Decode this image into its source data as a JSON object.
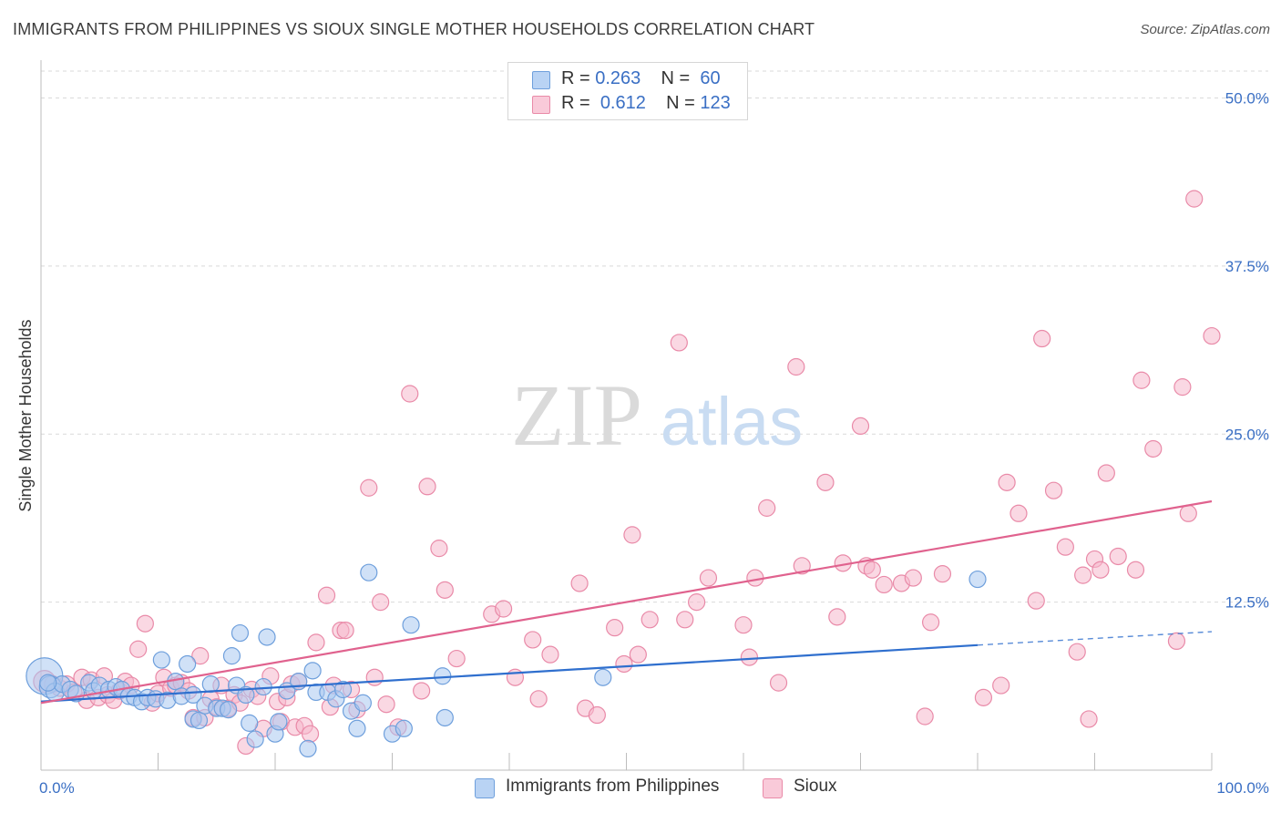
{
  "title": "IMMIGRANTS FROM PHILIPPINES VS SIOUX SINGLE MOTHER HOUSEHOLDS CORRELATION CHART",
  "source": "Source: ZipAtlas.com",
  "watermark": {
    "zip": "ZIP",
    "atlas": "atlas"
  },
  "legend": {
    "rows": [
      {
        "r_label": "R =",
        "r_value": "0.263",
        "n_label": "N =",
        "n_value": "60"
      },
      {
        "r_label": "R =",
        "r_value": "0.612",
        "n_label": "N =",
        "n_value": "123"
      }
    ]
  },
  "colors": {
    "blue_fill": "#a9c8f0",
    "blue_stroke": "#6e9fdc",
    "blue_line": "#2f6fce",
    "pink_fill": "#f6b8cc",
    "pink_stroke": "#e98aa8",
    "pink_line": "#e0628e",
    "tick_label": "#3a6fc4",
    "grid": "#d9d9d9"
  },
  "chart_data": {
    "type": "scatter",
    "title": "IMMIGRANTS FROM PHILIPPINES VS SIOUX SINGLE MOTHER HOUSEHOLDS CORRELATION CHART",
    "xlabel": "",
    "ylabel": "Single Mother Households",
    "xlim": [
      0,
      100
    ],
    "ylim": [
      0,
      52
    ],
    "x_tick_labels": [
      "0.0%",
      "100.0%"
    ],
    "y_ticks": [
      12.5,
      25.0,
      37.5,
      50.0
    ],
    "y_tick_labels": [
      "12.5%",
      "25.0%",
      "37.5%",
      "50.0%"
    ],
    "grid": true,
    "legend_position": "top-center",
    "series": [
      {
        "name": "Immigrants from Philippines",
        "color": "#a9c8f0",
        "trend": {
          "x": [
            0,
            80,
            100
          ],
          "y": [
            5.1,
            9.3,
            10.3
          ],
          "dashed_from": 80
        },
        "points": [
          [
            0.3,
            7.0,
            20
          ],
          [
            0.8,
            6.2,
            12
          ],
          [
            1.2,
            5.8,
            10
          ],
          [
            1.8,
            6.4,
            9
          ],
          [
            2.5,
            6.0,
            9
          ],
          [
            3.0,
            5.7,
            9
          ],
          [
            4.1,
            6.5,
            9
          ],
          [
            4.5,
            5.9,
            9
          ],
          [
            5.0,
            6.3,
            9
          ],
          [
            5.8,
            6.0,
            9
          ],
          [
            6.4,
            6.2,
            9
          ],
          [
            6.9,
            6.0,
            9
          ],
          [
            7.5,
            5.5,
            9
          ],
          [
            8.0,
            5.4,
            9
          ],
          [
            8.6,
            5.1,
            9
          ],
          [
            9.1,
            5.4,
            9
          ],
          [
            9.8,
            5.3,
            9
          ],
          [
            10.3,
            8.2,
            9
          ],
          [
            10.8,
            5.2,
            9
          ],
          [
            11.5,
            6.6,
            9
          ],
          [
            12.0,
            5.5,
            9
          ],
          [
            12.5,
            7.9,
            9
          ],
          [
            13.0,
            3.8,
            9
          ],
          [
            13.5,
            3.7,
            9
          ],
          [
            13.0,
            5.6,
            9
          ],
          [
            14.0,
            4.8,
            9
          ],
          [
            14.5,
            6.4,
            9
          ],
          [
            15.0,
            4.6,
            9
          ],
          [
            15.5,
            4.6,
            9
          ],
          [
            16.0,
            4.5,
            9
          ],
          [
            16.3,
            8.5,
            9
          ],
          [
            16.7,
            6.3,
            9
          ],
          [
            17.0,
            10.2,
            9
          ],
          [
            17.5,
            5.6,
            9
          ],
          [
            17.8,
            3.5,
            9
          ],
          [
            18.3,
            2.3,
            9
          ],
          [
            19.0,
            6.2,
            9
          ],
          [
            19.3,
            9.9,
            9
          ],
          [
            20.0,
            2.7,
            9
          ],
          [
            20.3,
            3.6,
            9
          ],
          [
            21.0,
            5.9,
            9
          ],
          [
            22.0,
            6.6,
            9
          ],
          [
            22.8,
            1.6,
            9
          ],
          [
            23.2,
            7.4,
            9
          ],
          [
            23.5,
            5.8,
            9
          ],
          [
            24.5,
            5.8,
            9
          ],
          [
            25.2,
            5.3,
            9
          ],
          [
            25.8,
            6.0,
            9
          ],
          [
            26.5,
            4.4,
            9
          ],
          [
            27.0,
            3.1,
            9
          ],
          [
            27.5,
            5.0,
            9
          ],
          [
            28.0,
            14.7,
            9
          ],
          [
            30.0,
            2.7,
            9
          ],
          [
            31.0,
            3.1,
            9
          ],
          [
            31.6,
            10.8,
            9
          ],
          [
            34.3,
            7.0,
            9
          ],
          [
            34.5,
            3.9,
            9
          ],
          [
            48.0,
            6.9,
            9
          ],
          [
            80.0,
            14.2,
            9
          ],
          [
            0.6,
            6.5,
            9
          ]
        ]
      },
      {
        "name": "Sioux",
        "color": "#f6b8cc",
        "trend": {
          "x": [
            0,
            100
          ],
          "y": [
            5.0,
            20.0
          ]
        },
        "points": [
          [
            0.3,
            6.6,
            12
          ],
          [
            1.0,
            6.4,
            9
          ],
          [
            1.6,
            6.1,
            9
          ],
          [
            2.2,
            6.4,
            9
          ],
          [
            2.8,
            5.8,
            9
          ],
          [
            3.5,
            6.9,
            9
          ],
          [
            3.9,
            5.2,
            9
          ],
          [
            4.3,
            6.7,
            9
          ],
          [
            4.9,
            5.4,
            9
          ],
          [
            5.4,
            7.0,
            9
          ],
          [
            5.7,
            5.6,
            9
          ],
          [
            6.2,
            5.2,
            9
          ],
          [
            6.7,
            5.9,
            9
          ],
          [
            7.2,
            6.6,
            9
          ],
          [
            7.7,
            6.3,
            9
          ],
          [
            8.3,
            9.0,
            9
          ],
          [
            8.9,
            10.9,
            9
          ],
          [
            9.5,
            5.0,
            9
          ],
          [
            10.0,
            5.7,
            9
          ],
          [
            10.5,
            6.9,
            9
          ],
          [
            11.1,
            6.1,
            9
          ],
          [
            11.5,
            6.3,
            9
          ],
          [
            12.0,
            6.5,
            9
          ],
          [
            12.6,
            5.9,
            9
          ],
          [
            13.0,
            3.9,
            9
          ],
          [
            13.6,
            8.5,
            9
          ],
          [
            14.0,
            3.9,
            9
          ],
          [
            14.5,
            5.3,
            9
          ],
          [
            15.0,
            4.7,
            9
          ],
          [
            15.4,
            6.3,
            9
          ],
          [
            16.0,
            4.6,
            9
          ],
          [
            16.5,
            5.6,
            9
          ],
          [
            17.0,
            5.0,
            9
          ],
          [
            17.5,
            1.8,
            9
          ],
          [
            18.0,
            6.0,
            9
          ],
          [
            18.5,
            5.5,
            9
          ],
          [
            19.0,
            3.1,
            9
          ],
          [
            19.6,
            7.0,
            9
          ],
          [
            20.2,
            5.1,
            9
          ],
          [
            20.5,
            3.6,
            9
          ],
          [
            21.0,
            5.4,
            9
          ],
          [
            21.4,
            6.4,
            9
          ],
          [
            21.7,
            3.2,
            9
          ],
          [
            22.0,
            6.6,
            9
          ],
          [
            22.5,
            3.3,
            9
          ],
          [
            23.0,
            2.7,
            9
          ],
          [
            23.5,
            9.5,
            9
          ],
          [
            24.4,
            13.0,
            9
          ],
          [
            24.7,
            4.7,
            9
          ],
          [
            25.0,
            6.3,
            9
          ],
          [
            25.6,
            10.4,
            9
          ],
          [
            26.0,
            10.4,
            9
          ],
          [
            26.5,
            6.0,
            9
          ],
          [
            27.0,
            4.5,
            9
          ],
          [
            28.0,
            21.0,
            9
          ],
          [
            28.5,
            6.9,
            9
          ],
          [
            29.0,
            12.5,
            9
          ],
          [
            29.5,
            4.9,
            9
          ],
          [
            30.5,
            3.2,
            9
          ],
          [
            31.5,
            28.0,
            9
          ],
          [
            32.5,
            5.9,
            9
          ],
          [
            33.0,
            21.1,
            9
          ],
          [
            34.0,
            16.5,
            9
          ],
          [
            34.5,
            13.4,
            9
          ],
          [
            35.5,
            8.3,
            9
          ],
          [
            38.5,
            11.6,
            9
          ],
          [
            39.5,
            12.0,
            9
          ],
          [
            40.5,
            6.9,
            9
          ],
          [
            42.0,
            9.7,
            9
          ],
          [
            42.5,
            5.3,
            9
          ],
          [
            43.5,
            8.6,
            9
          ],
          [
            46.0,
            13.9,
            9
          ],
          [
            46.5,
            4.6,
            9
          ],
          [
            47.5,
            4.1,
            9
          ],
          [
            49.0,
            10.6,
            9
          ],
          [
            49.8,
            7.9,
            9
          ],
          [
            50.5,
            17.5,
            9
          ],
          [
            51.0,
            8.6,
            9
          ],
          [
            52.0,
            11.2,
            9
          ],
          [
            54.5,
            31.8,
            9
          ],
          [
            55.0,
            11.2,
            9
          ],
          [
            56.0,
            12.5,
            9
          ],
          [
            57.0,
            14.3,
            9
          ],
          [
            60.0,
            10.8,
            9
          ],
          [
            60.5,
            8.4,
            9
          ],
          [
            61.0,
            14.3,
            9
          ],
          [
            62.0,
            19.5,
            9
          ],
          [
            63.0,
            6.5,
            9
          ],
          [
            64.5,
            30.0,
            9
          ],
          [
            65.0,
            15.2,
            9
          ],
          [
            67.0,
            21.4,
            9
          ],
          [
            68.0,
            11.4,
            9
          ],
          [
            68.5,
            15.4,
            9
          ],
          [
            70.0,
            25.6,
            9
          ],
          [
            70.5,
            15.2,
            9
          ],
          [
            71.0,
            14.9,
            9
          ],
          [
            72.0,
            13.8,
            9
          ],
          [
            73.5,
            13.9,
            9
          ],
          [
            74.5,
            14.3,
            9
          ],
          [
            75.5,
            4.0,
            9
          ],
          [
            76.0,
            11.0,
            9
          ],
          [
            77.0,
            14.6,
            9
          ],
          [
            80.5,
            5.4,
            9
          ],
          [
            82.0,
            6.3,
            9
          ],
          [
            82.5,
            21.4,
            9
          ],
          [
            83.5,
            19.1,
            9
          ],
          [
            85.0,
            12.6,
            9
          ],
          [
            85.5,
            32.1,
            9
          ],
          [
            86.5,
            20.8,
            9
          ],
          [
            87.5,
            16.6,
            9
          ],
          [
            88.5,
            8.8,
            9
          ],
          [
            89.0,
            14.5,
            9
          ],
          [
            89.5,
            3.8,
            9
          ],
          [
            90.0,
            15.7,
            9
          ],
          [
            90.5,
            14.9,
            9
          ],
          [
            91.0,
            22.1,
            9
          ],
          [
            92.0,
            15.9,
            9
          ],
          [
            93.5,
            14.9,
            9
          ],
          [
            94.0,
            29.0,
            9
          ],
          [
            95.0,
            23.9,
            9
          ],
          [
            97.0,
            9.6,
            9
          ],
          [
            97.5,
            28.5,
            9
          ],
          [
            98.0,
            19.1,
            9
          ],
          [
            98.5,
            42.5,
            9
          ],
          [
            100.0,
            32.3,
            9
          ]
        ]
      }
    ]
  },
  "bottom_legend": [
    "Immigrants from Philippines",
    "Sioux"
  ]
}
